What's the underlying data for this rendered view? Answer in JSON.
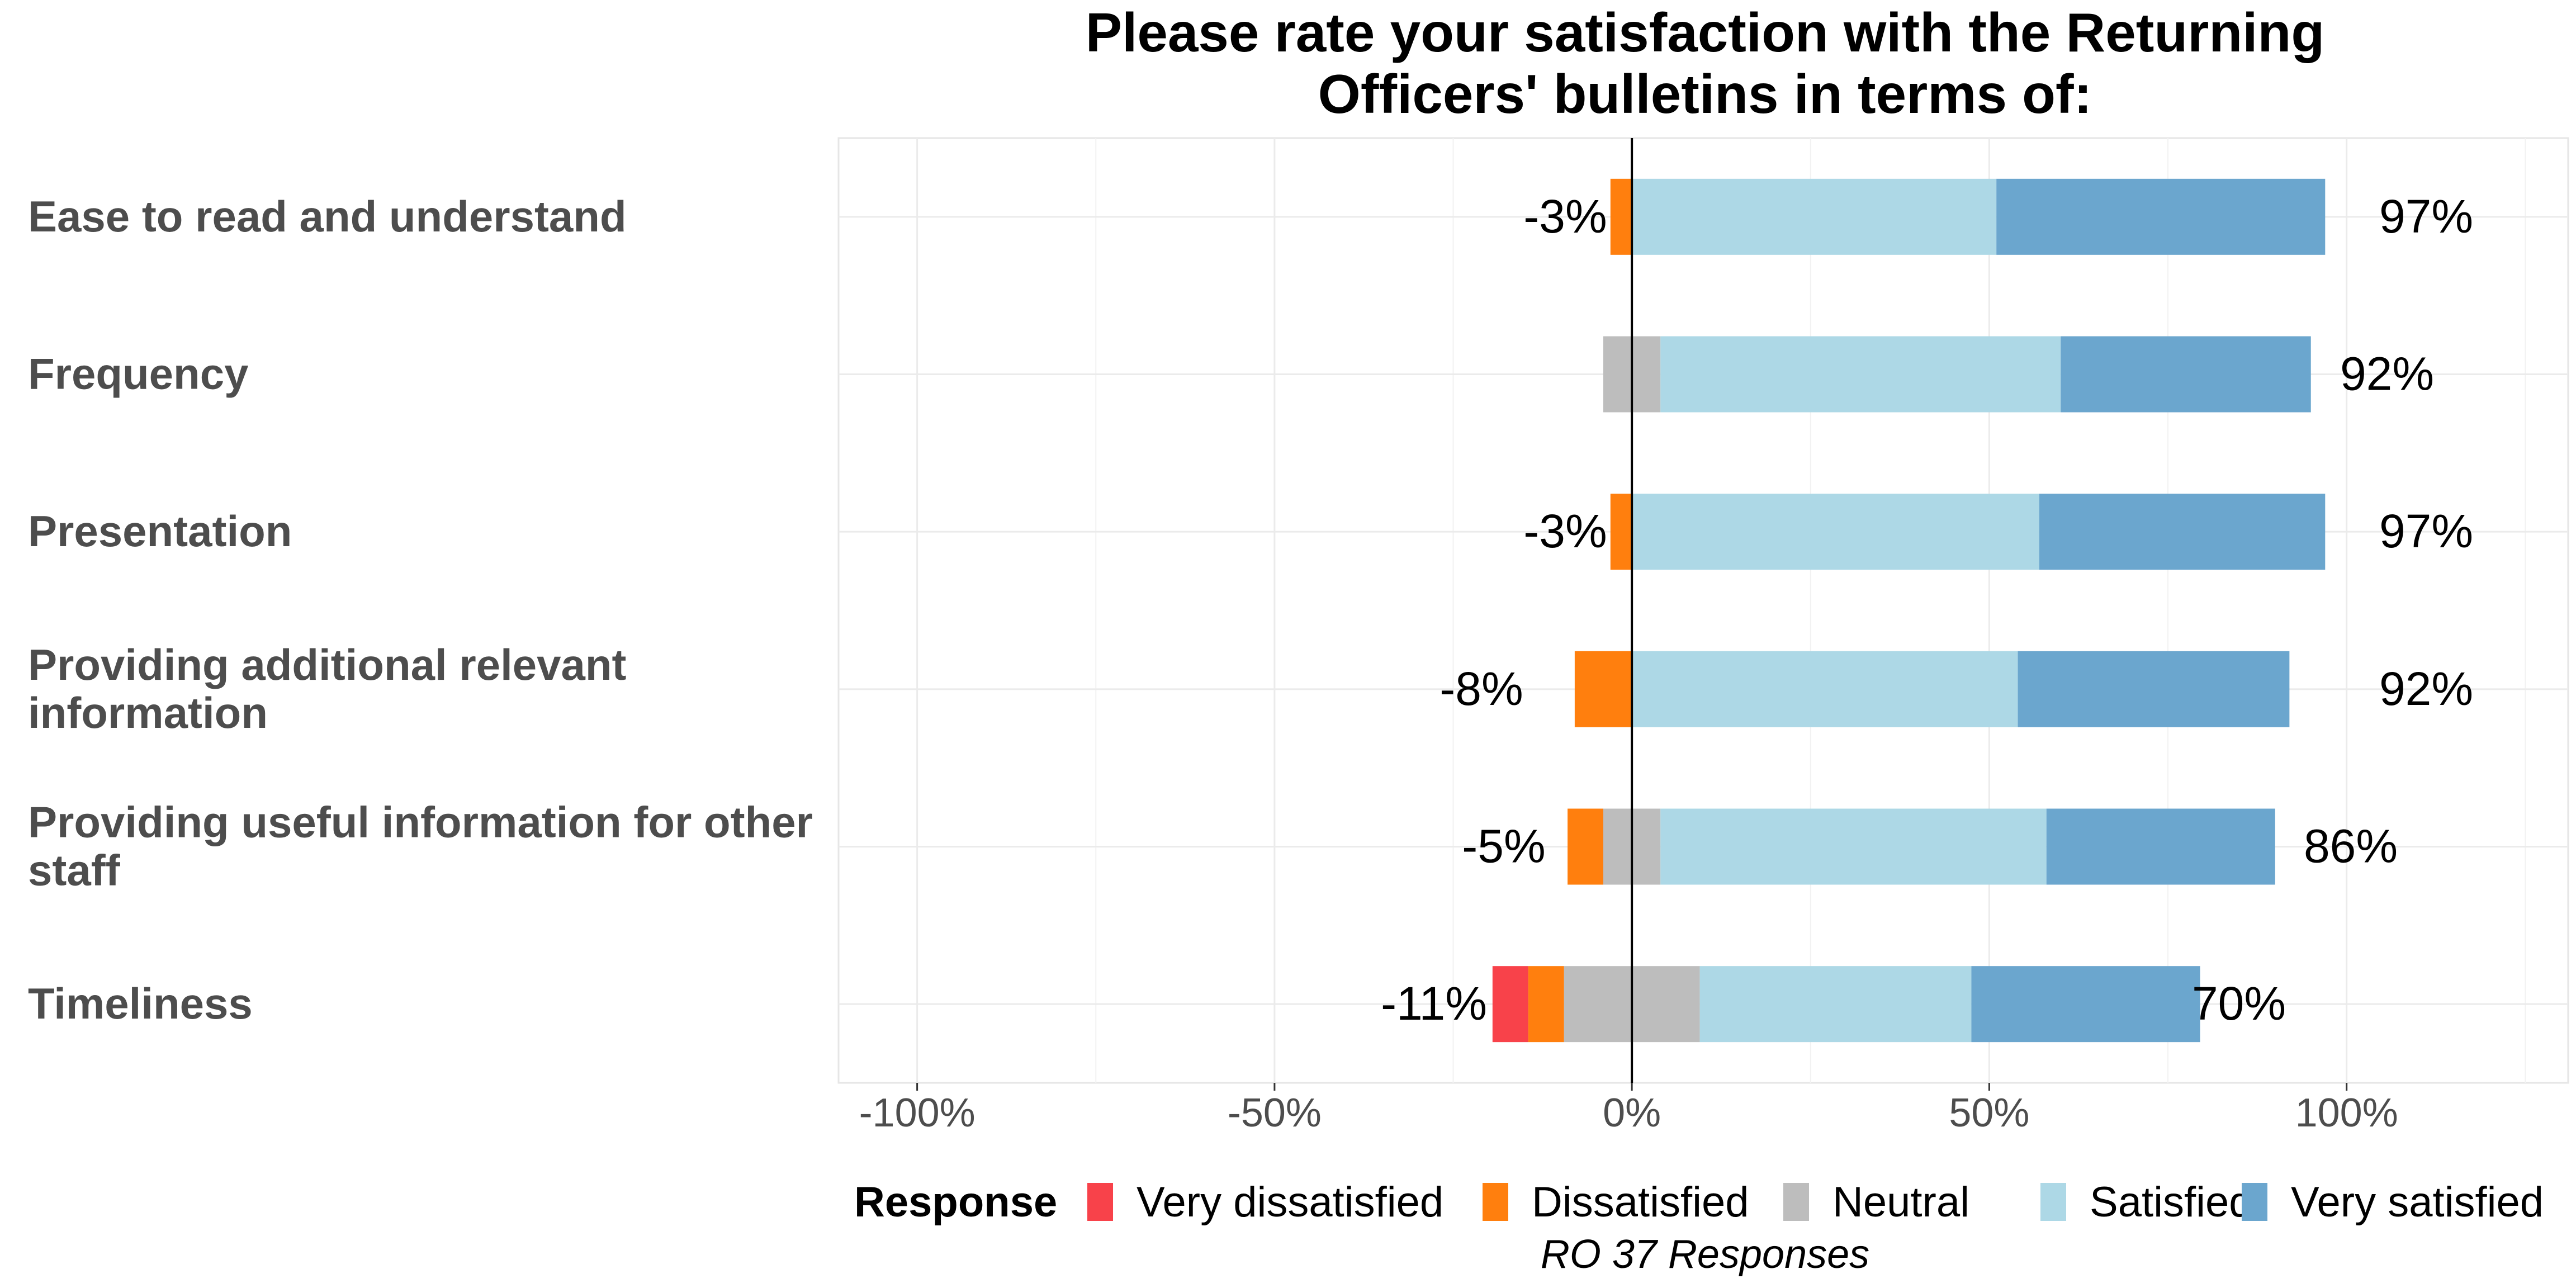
{
  "chart_data": {
    "type": "bar",
    "orientation": "horizontal",
    "stacked": "diverging",
    "title_lines": [
      "Please rate your satisfaction with the Returning",
      "Officers' bulletins in terms of:"
    ],
    "categories": [
      [
        "Ease to read and understand"
      ],
      [
        "Frequency"
      ],
      [
        "Presentation"
      ],
      [
        "Providing additional relevant",
        "information"
      ],
      [
        "Providing useful information for other",
        "staff"
      ],
      [
        "Timeliness"
      ]
    ],
    "series": [
      {
        "name": "Very dissatisfied",
        "color": "#f8424a",
        "values": [
          0,
          0,
          0,
          0,
          0,
          5
        ]
      },
      {
        "name": "Dissatisfied",
        "color": "#ff7f0e",
        "values": [
          3,
          0,
          3,
          8,
          5,
          5
        ]
      },
      {
        "name": "Neutral",
        "color": "#bdbdbd",
        "values": [
          0,
          8,
          0,
          0,
          8,
          19
        ]
      },
      {
        "name": "Satisfied",
        "color": "#add8e6",
        "values": [
          51,
          56,
          57,
          54,
          54,
          38
        ]
      },
      {
        "name": "Very satisfied",
        "color": "#6ba6ce",
        "values": [
          46,
          35,
          40,
          38,
          32,
          32
        ]
      }
    ],
    "negative_labels": [
      "-3%",
      "",
      "-3%",
      "-8%",
      "-5%",
      "-11%"
    ],
    "positive_labels": [
      "97%",
      "92%",
      "97%",
      "92%",
      "86%",
      "70%"
    ],
    "x_ticks": [
      "-100%",
      "-50%",
      "0%",
      "50%",
      "100%"
    ],
    "x_tick_values": [
      -100,
      -50,
      0,
      50,
      100
    ],
    "xlim": [
      -111,
      131
    ],
    "grid": true,
    "legend": {
      "title": "Response",
      "position": "bottom",
      "items": [
        "Very dissatisfied",
        "Dissatisfied",
        "Neutral",
        "Satisfied",
        "Very satisfied"
      ]
    },
    "caption": "RO 37 Responses"
  }
}
